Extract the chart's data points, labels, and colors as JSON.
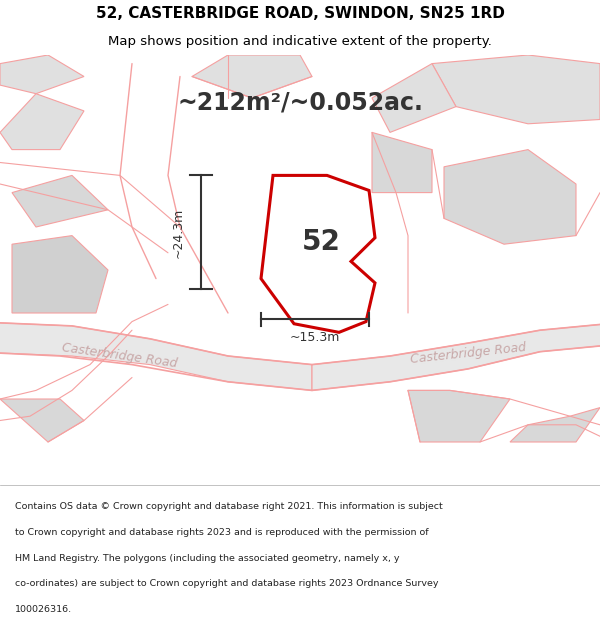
{
  "title_line1": "52, CASTERBRIDGE ROAD, SWINDON, SN25 1RD",
  "title_line2": "Map shows position and indicative extent of the property.",
  "area_text": "~212m²/~0.052ac.",
  "dim_width": "~15.3m",
  "dim_height": "~24.3m",
  "label_52": "52",
  "bg_color": "#f5f5f5",
  "map_bg": "#ffffff",
  "road_line_color": "#f5a0a0",
  "highlight_stroke": "#cc0000",
  "dim_line_color": "#333333",
  "text_color": "#000000",
  "road_label_color": "#c8a8a8",
  "footer_lines": [
    "Contains OS data © Crown copyright and database right 2021. This information is subject",
    "to Crown copyright and database rights 2023 and is reproduced with the permission of",
    "HM Land Registry. The polygons (including the associated geometry, namely x, y",
    "co-ordinates) are subject to Crown copyright and database rights 2023 Ordnance Survey",
    "100026316."
  ]
}
